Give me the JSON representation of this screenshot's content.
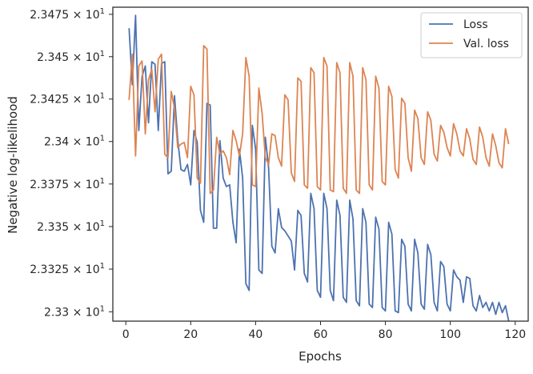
{
  "chart_data": {
    "type": "line",
    "title": "",
    "xlabel": "Epochs",
    "ylabel": "Negative log-likelihood",
    "xlim": [
      -4,
      124
    ],
    "ylim": [
      23.2945,
      23.4792
    ],
    "y_scale": "log",
    "grid": false,
    "legend_position": "top-right",
    "x_ticks": [
      0,
      20,
      40,
      60,
      80,
      100,
      120
    ],
    "y_ticks": [
      {
        "value": 23.3,
        "base": "2.33",
        "exp": "1"
      },
      {
        "value": 23.325,
        "base": "2.3325",
        "exp": "1"
      },
      {
        "value": 23.35,
        "base": "2.335",
        "exp": "1"
      },
      {
        "value": 23.375,
        "base": "2.3375",
        "exp": "1"
      },
      {
        "value": 23.4,
        "base": "2.34",
        "exp": "1"
      },
      {
        "value": 23.425,
        "base": "2.3425",
        "exp": "1"
      },
      {
        "value": 23.45,
        "base": "2.345",
        "exp": "1"
      },
      {
        "value": 23.475,
        "base": "2.3475",
        "exp": "1"
      }
    ],
    "series": [
      {
        "name": "Loss",
        "color": "#4c72b0",
        "x": [
          1,
          2,
          3,
          4,
          5,
          6,
          7,
          8,
          9,
          10,
          11,
          12,
          13,
          14,
          15,
          16,
          17,
          18,
          19,
          20,
          21,
          22,
          23,
          24,
          25,
          26,
          27,
          28,
          29,
          30,
          31,
          32,
          33,
          34,
          35,
          36,
          37,
          38,
          39,
          40,
          41,
          42,
          43,
          44,
          45,
          46,
          47,
          48,
          49,
          50,
          51,
          52,
          53,
          54,
          55,
          56,
          57,
          58,
          59,
          60,
          61,
          62,
          63,
          64,
          65,
          66,
          67,
          68,
          69,
          70,
          71,
          72,
          73,
          74,
          75,
          76,
          77,
          78,
          79,
          80,
          81,
          82,
          83,
          84,
          85,
          86,
          87,
          88,
          89,
          90,
          91,
          92,
          93,
          94,
          95,
          96,
          97,
          98,
          99,
          100,
          101,
          102,
          103,
          104,
          105,
          106,
          107,
          108,
          109,
          110,
          111,
          112,
          113,
          114,
          115,
          116,
          117,
          118
        ],
        "values": [
          23.4668,
          23.4335,
          23.4744,
          23.4065,
          23.4383,
          23.4445,
          23.411,
          23.447,
          23.4455,
          23.4065,
          23.446,
          23.447,
          23.381,
          23.3825,
          23.427,
          23.401,
          23.3835,
          23.3825,
          23.3865,
          23.3745,
          23.4065,
          23.3995,
          23.3595,
          23.3525,
          23.4225,
          23.4215,
          23.349,
          23.349,
          23.4005,
          23.3785,
          23.3735,
          23.3745,
          23.3525,
          23.3405,
          23.3955,
          23.3785,
          23.3165,
          23.3125,
          23.4095,
          23.3955,
          23.3245,
          23.3225,
          23.4025,
          23.3845,
          23.3385,
          23.3345,
          23.3605,
          23.3495,
          23.3475,
          23.3445,
          23.3415,
          23.3245,
          23.3595,
          23.3565,
          23.3225,
          23.3175,
          23.3695,
          23.3605,
          23.3125,
          23.3085,
          23.3695,
          23.3605,
          23.3125,
          23.3065,
          23.3655,
          23.3565,
          23.3085,
          23.3055,
          23.3655,
          23.3545,
          23.3065,
          23.3035,
          23.3605,
          23.3525,
          23.3045,
          23.3025,
          23.3555,
          23.3485,
          23.3025,
          23.3005,
          23.3525,
          23.3455,
          23.3005,
          23.2995,
          23.3425,
          23.3385,
          23.3045,
          23.3005,
          23.3425,
          23.3345,
          23.3045,
          23.3015,
          23.3395,
          23.3335,
          23.3055,
          23.3005,
          23.3295,
          23.3265,
          23.3045,
          23.3005,
          23.3245,
          23.3205,
          23.3185,
          23.3055,
          23.3205,
          23.3195,
          23.3035,
          23.3005,
          23.3095,
          23.3025,
          23.3055,
          23.3005,
          23.3055,
          23.2985,
          23.3055,
          23.2995,
          23.3035,
          23.2945
        ]
      },
      {
        "name": "Val. loss",
        "color": "#dd8452",
        "x": [
          1,
          2,
          3,
          4,
          5,
          6,
          7,
          8,
          9,
          10,
          11,
          12,
          13,
          14,
          15,
          16,
          17,
          18,
          19,
          20,
          21,
          22,
          23,
          24,
          25,
          26,
          27,
          28,
          29,
          30,
          31,
          32,
          33,
          34,
          35,
          36,
          37,
          38,
          39,
          40,
          41,
          42,
          43,
          44,
          45,
          46,
          47,
          48,
          49,
          50,
          51,
          52,
          53,
          54,
          55,
          56,
          57,
          58,
          59,
          60,
          61,
          62,
          63,
          64,
          65,
          66,
          67,
          68,
          69,
          70,
          71,
          72,
          73,
          74,
          75,
          76,
          77,
          78,
          79,
          80,
          81,
          82,
          83,
          84,
          85,
          86,
          87,
          88,
          89,
          90,
          91,
          92,
          93,
          94,
          95,
          96,
          97,
          98,
          99,
          100,
          101,
          102,
          103,
          104,
          105,
          106,
          107,
          108,
          109,
          110,
          111,
          112,
          113,
          114,
          115,
          116,
          117,
          118
        ],
        "values": [
          23.4245,
          23.4515,
          23.3915,
          23.4445,
          23.4475,
          23.4045,
          23.4365,
          23.4425,
          23.4175,
          23.4485,
          23.4515,
          23.3925,
          23.3905,
          23.4295,
          23.4195,
          23.3965,
          23.3985,
          23.3995,
          23.3905,
          23.4325,
          23.4275,
          23.3785,
          23.3755,
          23.4565,
          23.4545,
          23.3695,
          23.3715,
          23.4025,
          23.3925,
          23.3945,
          23.3905,
          23.3805,
          23.4065,
          23.4005,
          23.3915,
          23.4045,
          23.4495,
          23.4385,
          23.3745,
          23.3735,
          23.4315,
          23.4165,
          23.3905,
          23.3865,
          23.4045,
          23.4035,
          23.3905,
          23.3855,
          23.4275,
          23.4245,
          23.3815,
          23.3765,
          23.4375,
          23.4355,
          23.3745,
          23.3725,
          23.4435,
          23.4405,
          23.3735,
          23.3715,
          23.4495,
          23.4445,
          23.3715,
          23.3705,
          23.4465,
          23.4405,
          23.3725,
          23.3695,
          23.4465,
          23.4385,
          23.3715,
          23.3695,
          23.4435,
          23.4365,
          23.3745,
          23.3715,
          23.4385,
          23.4315,
          23.3765,
          23.3745,
          23.4325,
          23.4265,
          23.3835,
          23.3785,
          23.4255,
          23.4225,
          23.3905,
          23.3825,
          23.4185,
          23.4135,
          23.3905,
          23.3865,
          23.4175,
          23.4125,
          23.3925,
          23.3885,
          23.4095,
          23.4055,
          23.3965,
          23.3915,
          23.4105,
          23.4045,
          23.3945,
          23.3915,
          23.4075,
          23.4015,
          23.3895,
          23.3865,
          23.4085,
          23.4025,
          23.3905,
          23.3855,
          23.4045,
          23.3975,
          23.3875,
          23.3845,
          23.4075,
          23.3985
        ]
      }
    ]
  }
}
